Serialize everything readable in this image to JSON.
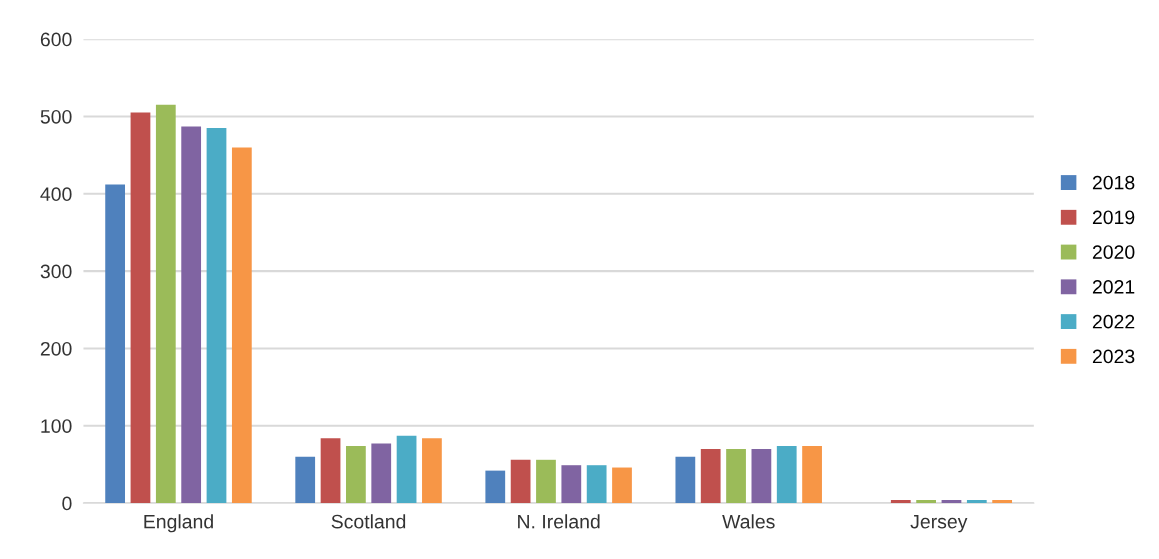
{
  "chart_data": {
    "type": "bar",
    "categories": [
      "England",
      "Scotland",
      "N. Ireland",
      "Wales",
      "Jersey"
    ],
    "series": [
      {
        "name": "2018",
        "color": "#4f81bd",
        "values": [
          412,
          60,
          42,
          60,
          0
        ]
      },
      {
        "name": "2019",
        "color": "#c0504d",
        "values": [
          505,
          84,
          56,
          70,
          4
        ]
      },
      {
        "name": "2020",
        "color": "#9bbb59",
        "values": [
          515,
          74,
          56,
          70,
          4
        ]
      },
      {
        "name": "2021",
        "color": "#8064a2",
        "values": [
          487,
          77,
          49,
          70,
          4
        ]
      },
      {
        "name": "2022",
        "color": "#4bacc6",
        "values": [
          485,
          87,
          49,
          74,
          4
        ]
      },
      {
        "name": "2023",
        "color": "#f79646",
        "values": [
          460,
          84,
          46,
          74,
          4
        ]
      }
    ],
    "ylim": [
      0,
      600
    ],
    "yticks": [
      0,
      100,
      200,
      300,
      400,
      500,
      600
    ],
    "grid": "y",
    "legend": "right"
  }
}
